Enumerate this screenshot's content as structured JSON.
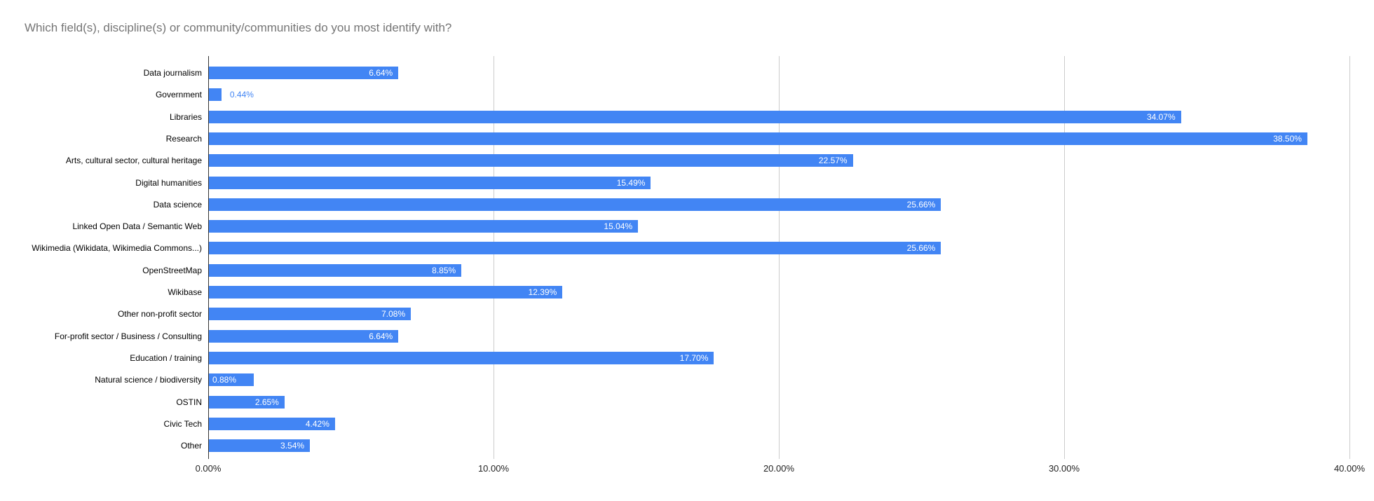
{
  "header": {
    "title": "Which field(s), discipline(s) or community/communities do you most identify with?"
  },
  "colors": {
    "bar": "#4285f4",
    "title_text": "#757575",
    "gridline": "#cccccc",
    "axis_line": "#333333",
    "annotation_inside": "#ffffff",
    "annotation_outside": "#4285f4"
  },
  "chart_data": {
    "type": "bar",
    "orientation": "horizontal",
    "title": "Which field(s), discipline(s) or community/communities do you most identify with?",
    "categories": [
      "Data journalism",
      "Government",
      "Libraries",
      "Research",
      "Arts, cultural sector, cultural heritage",
      "Digital humanities",
      "Data science",
      "Linked Open Data / Semantic Web",
      "Wikimedia (Wikidata, Wikimedia Commons...)",
      "OpenStreetMap",
      "Wikibase",
      "Other non-profit sector",
      "For-profit sector / Business / Consulting",
      "Education / training",
      "Natural science / biodiversity",
      "OSTIN",
      "Civic Tech",
      "Other"
    ],
    "values": [
      6.64,
      0.44,
      34.07,
      38.5,
      22.57,
      15.49,
      25.66,
      15.04,
      25.66,
      8.85,
      12.39,
      7.08,
      6.64,
      17.7,
      0.88,
      2.65,
      4.42,
      3.54
    ],
    "value_labels": [
      "6.64%",
      "0.44%",
      "34.07%",
      "38.50%",
      "22.57%",
      "15.49%",
      "25.66%",
      "15.04%",
      "25.66%",
      "8.85%",
      "12.39%",
      "7.08%",
      "6.64%",
      "17.70%",
      "0.88%",
      "2.65%",
      "4.42%",
      "3.54%"
    ],
    "label_placement": [
      "inside",
      "outside",
      "inside",
      "inside",
      "inside",
      "inside",
      "inside",
      "inside",
      "inside",
      "inside",
      "inside",
      "inside",
      "inside",
      "inside",
      "start",
      "inside",
      "inside",
      "inside"
    ],
    "xlabel": "",
    "ylabel": "",
    "xlim": [
      0,
      40
    ],
    "x_ticks": [
      0,
      10,
      20,
      30,
      40
    ],
    "x_tick_labels": [
      "0.00%",
      "10.00%",
      "20.00%",
      "30.00%",
      "40.00%"
    ],
    "grid": true,
    "legend": "none"
  }
}
